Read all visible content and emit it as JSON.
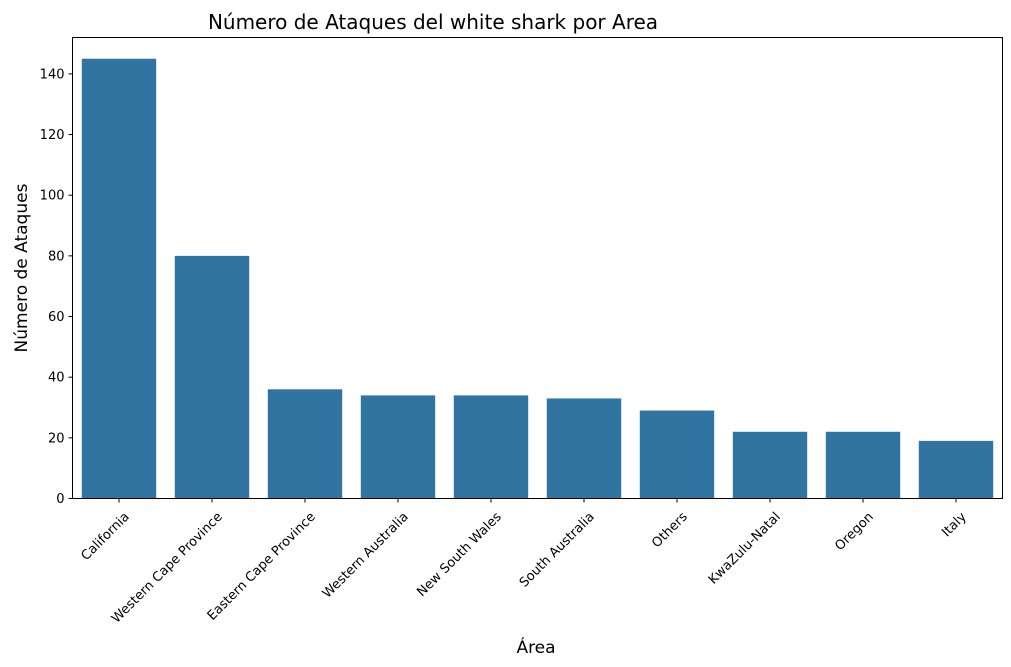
{
  "chart_data": {
    "type": "bar",
    "title": "Número de Ataques del white shark por Area",
    "xlabel": "Área",
    "ylabel": "Número de Ataques",
    "categories": [
      "California",
      "Western Cape Province",
      "Eastern Cape Province",
      "Western Australia",
      "New South Wales",
      "South Australia",
      "Others",
      "KwaZulu-Natal",
      "Oregon",
      "Italy"
    ],
    "values": [
      145,
      80,
      36,
      34,
      34,
      33,
      29,
      22,
      22,
      19
    ],
    "ylim": [
      0,
      152
    ],
    "yticks": [
      0,
      20,
      40,
      60,
      80,
      100,
      120,
      140
    ],
    "bar_color": "#3274a1",
    "grid": false,
    "legend": "none"
  }
}
